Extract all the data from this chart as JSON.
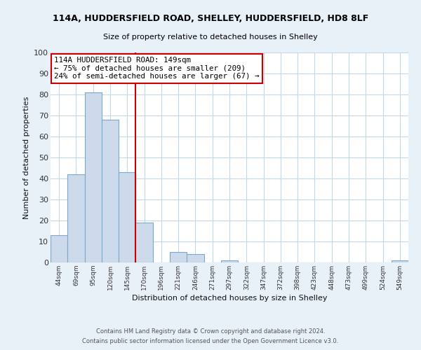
{
  "title": "114A, HUDDERSFIELD ROAD, SHELLEY, HUDDERSFIELD, HD8 8LF",
  "subtitle": "Size of property relative to detached houses in Shelley",
  "xlabel": "Distribution of detached houses by size in Shelley",
  "ylabel": "Number of detached properties",
  "bar_labels": [
    "44sqm",
    "69sqm",
    "95sqm",
    "120sqm",
    "145sqm",
    "170sqm",
    "196sqm",
    "221sqm",
    "246sqm",
    "271sqm",
    "297sqm",
    "322sqm",
    "347sqm",
    "372sqm",
    "398sqm",
    "423sqm",
    "448sqm",
    "473sqm",
    "499sqm",
    "524sqm",
    "549sqm"
  ],
  "bar_values": [
    13,
    42,
    81,
    68,
    43,
    19,
    0,
    5,
    4,
    0,
    1,
    0,
    0,
    0,
    0,
    0,
    0,
    0,
    0,
    0,
    1
  ],
  "bar_color": "#ccdaeb",
  "bar_edge_color": "#7aaac8",
  "ylim": [
    0,
    100
  ],
  "yticks": [
    0,
    10,
    20,
    30,
    40,
    50,
    60,
    70,
    80,
    90,
    100
  ],
  "property_line_label": "114A HUDDERSFIELD ROAD: 149sqm",
  "annotation_line1": "← 75% of detached houses are smaller (209)",
  "annotation_line2": "24% of semi-detached houses are larger (67) →",
  "annotation_box_color": "#ffffff",
  "annotation_box_edge": "#cc0000",
  "property_line_color": "#cc0000",
  "grid_color": "#c5d8e8",
  "plot_bg_color": "#ffffff",
  "fig_bg_color": "#e8f0f8",
  "title_color": "#000000",
  "footer_line1": "Contains HM Land Registry data © Crown copyright and database right 2024.",
  "footer_line2": "Contains public sector information licensed under the Open Government Licence v3.0.",
  "footer_color": "#555555"
}
